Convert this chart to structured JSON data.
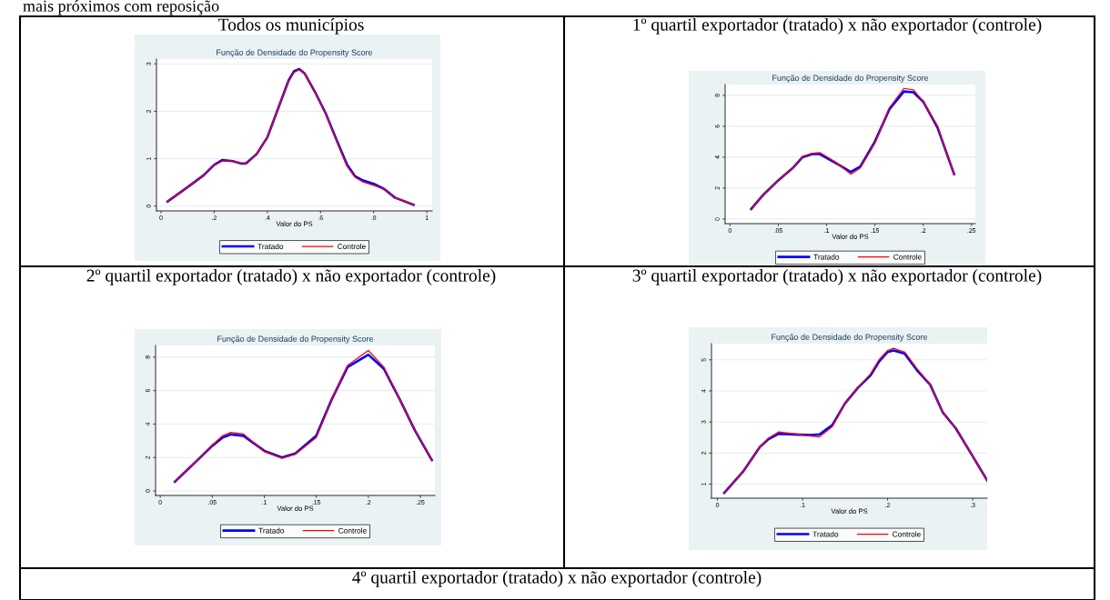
{
  "chart_data": [
    {
      "type": "line",
      "title": "Todos os municípios",
      "subtitle": "Função de Densidade do Propensity Score",
      "xlabel": "Valor do PS",
      "annotations": [
        "mais próximos com reposição"
      ],
      "xlim": [
        -0.017,
        1.02
      ],
      "xticks": [
        {
          "value": 0,
          "label": "0"
        },
        {
          "value": 0.2,
          "label": ".2"
        },
        {
          "value": 0.4,
          "label": ".4"
        },
        {
          "value": 0.6,
          "label": ".6"
        },
        {
          "value": 0.8,
          "label": ".8"
        },
        {
          "value": 1,
          "label": "1"
        }
      ],
      "ylim": [
        -0.1,
        3.1
      ],
      "yticks": [
        0,
        1,
        2,
        3
      ],
      "grid": "y",
      "legend": "bottom",
      "x": [
        0.025,
        0.1,
        0.16,
        0.2,
        0.23,
        0.27,
        0.3,
        0.32,
        0.36,
        0.4,
        0.44,
        0.48,
        0.5,
        0.52,
        0.54,
        0.58,
        0.62,
        0.66,
        0.7,
        0.73,
        0.76,
        0.8,
        0.84,
        0.88,
        0.95
      ],
      "series": [
        {
          "name": "Tratado",
          "color": "#0000ff",
          "values": [
            0.1,
            0.4,
            0.65,
            0.87,
            0.97,
            0.95,
            0.9,
            0.9,
            1.1,
            1.45,
            2.05,
            2.65,
            2.84,
            2.89,
            2.8,
            2.4,
            1.95,
            1.4,
            0.87,
            0.63,
            0.54,
            0.47,
            0.36,
            0.18,
            0.03
          ]
        },
        {
          "name": "Controle",
          "color": "#ff0000",
          "values": [
            0.1,
            0.4,
            0.65,
            0.86,
            0.95,
            0.95,
            0.9,
            0.89,
            1.1,
            1.44,
            2.05,
            2.63,
            2.82,
            2.88,
            2.8,
            2.4,
            1.95,
            1.38,
            0.84,
            0.61,
            0.51,
            0.44,
            0.36,
            0.18,
            0.03
          ]
        }
      ]
    },
    {
      "type": "line",
      "title": "1º quartil exportador (tratado) x não exportador (controle)",
      "subtitle": "Função de Densidade do Propensity Score",
      "xlabel": "Valor do PS",
      "xlim": [
        -0.005,
        0.254
      ],
      "xticks": [
        {
          "value": 0,
          "label": "0"
        },
        {
          "value": 0.05,
          "label": ".05"
        },
        {
          "value": 0.1,
          "label": ".1"
        },
        {
          "value": 0.15,
          "label": ".15"
        },
        {
          "value": 0.2,
          "label": ".2"
        },
        {
          "value": 0.25,
          "label": ".25"
        }
      ],
      "ylim": [
        -0.3,
        8.7
      ],
      "yticks": [
        0,
        2,
        4,
        6,
        8
      ],
      "grid": "y",
      "legend": "bottom",
      "x": [
        0.022,
        0.035,
        0.05,
        0.065,
        0.075,
        0.085,
        0.093,
        0.11,
        0.125,
        0.135,
        0.15,
        0.165,
        0.18,
        0.19,
        0.2,
        0.215,
        0.232
      ],
      "series": [
        {
          "name": "Tratado",
          "color": "#0000ff",
          "values": [
            0.65,
            1.6,
            2.5,
            3.3,
            4.0,
            4.2,
            4.2,
            3.6,
            3.05,
            3.4,
            5.0,
            7.1,
            8.25,
            8.2,
            7.6,
            5.9,
            2.9
          ]
        },
        {
          "name": "Controle",
          "color": "#ff0000",
          "values": [
            0.6,
            1.6,
            2.5,
            3.3,
            4.05,
            4.25,
            4.3,
            3.65,
            2.9,
            3.3,
            4.9,
            7.2,
            8.45,
            8.35,
            7.6,
            6.0,
            2.85
          ]
        }
      ]
    },
    {
      "type": "line",
      "title": "2º quartil exportador (tratado) x não exportador (controle)",
      "subtitle": "Função de Densidade do Propensity Score",
      "xlabel": "Valor do PS",
      "xlim": [
        -0.0045,
        0.264
      ],
      "xticks": [
        {
          "value": 0,
          "label": "0"
        },
        {
          "value": 0.05,
          "label": ".05"
        },
        {
          "value": 0.1,
          "label": ".1"
        },
        {
          "value": 0.15,
          "label": ".15"
        },
        {
          "value": 0.2,
          "label": ".2"
        },
        {
          "value": 0.25,
          "label": ".25"
        }
      ],
      "ylim": [
        -0.27,
        8.7
      ],
      "yticks": [
        0,
        2,
        4,
        6,
        8
      ],
      "grid": "y",
      "legend": "bottom",
      "x": [
        0.014,
        0.03,
        0.05,
        0.06,
        0.068,
        0.08,
        0.1,
        0.117,
        0.13,
        0.15,
        0.165,
        0.18,
        0.2,
        0.215,
        0.23,
        0.245,
        0.261
      ],
      "series": [
        {
          "name": "Tratado",
          "color": "#0000ff",
          "values": [
            0.55,
            1.5,
            2.7,
            3.2,
            3.38,
            3.3,
            2.4,
            2.0,
            2.25,
            3.3,
            5.5,
            7.4,
            8.15,
            7.3,
            5.5,
            3.6,
            1.85
          ]
        },
        {
          "name": "Controle",
          "color": "#ff0000",
          "values": [
            0.55,
            1.5,
            2.75,
            3.3,
            3.5,
            3.4,
            2.35,
            1.95,
            2.2,
            3.2,
            5.5,
            7.5,
            8.4,
            7.4,
            5.5,
            3.6,
            1.85
          ]
        }
      ]
    },
    {
      "type": "line",
      "title": "3º quartil exportador (tratado) x não exportador (controle)",
      "subtitle": "Função de Densidade do Propensity Score",
      "xlabel": "Valor do PS",
      "xlim": [
        -0.007,
        0.317
      ],
      "xticks": [
        {
          "value": 0,
          "label": "0"
        },
        {
          "value": 0.1,
          "label": ".1"
        },
        {
          "value": 0.2,
          "label": ".2"
        },
        {
          "value": 0.3,
          "label": ".3"
        }
      ],
      "ylim": [
        0.55,
        5.52
      ],
      "yticks": [
        1,
        2,
        3,
        4,
        5
      ],
      "grid": "y",
      "legend": "bottom",
      "x": [
        0.008,
        0.03,
        0.05,
        0.06,
        0.072,
        0.09,
        0.11,
        0.12,
        0.135,
        0.15,
        0.165,
        0.18,
        0.19,
        0.2,
        0.207,
        0.22,
        0.235,
        0.25,
        0.265,
        0.28,
        0.3,
        0.317
      ],
      "series": [
        {
          "name": "Tratado",
          "color": "#0000ff",
          "values": [
            0.72,
            1.4,
            2.2,
            2.45,
            2.62,
            2.6,
            2.58,
            2.6,
            2.9,
            3.6,
            4.1,
            4.5,
            4.95,
            5.25,
            5.3,
            5.2,
            4.65,
            4.2,
            3.3,
            2.8,
            1.9,
            1.12
          ]
        },
        {
          "name": "Controle",
          "color": "#ff0000",
          "values": [
            0.72,
            1.4,
            2.2,
            2.48,
            2.68,
            2.62,
            2.55,
            2.52,
            2.85,
            3.6,
            4.1,
            4.55,
            5.0,
            5.3,
            5.37,
            5.25,
            4.7,
            4.2,
            3.3,
            2.8,
            1.9,
            1.1
          ]
        }
      ]
    },
    {
      "type": "other",
      "title": "4º quartil exportador (tratado) x não exportador (controle)"
    }
  ]
}
